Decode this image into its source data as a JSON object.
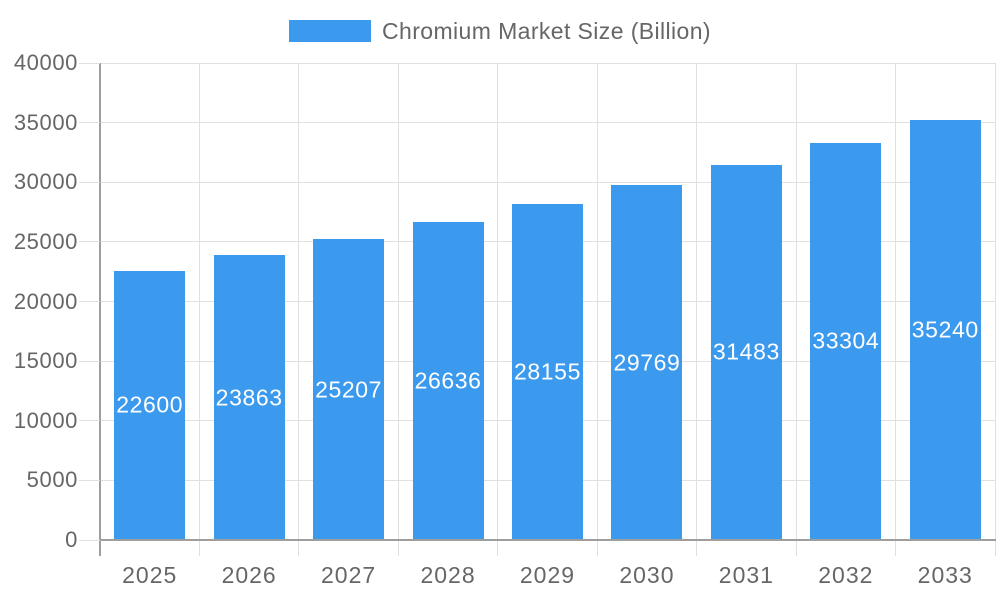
{
  "chart_data": {
    "type": "bar",
    "title": "Chromium Market Size (Billion)",
    "categories": [
      "2025",
      "2026",
      "2027",
      "2028",
      "2029",
      "2030",
      "2031",
      "2032",
      "2033"
    ],
    "series": [
      {
        "name": "Chromium Market Size (Billion)",
        "values": [
          22600,
          23863,
          25207,
          26636,
          28155,
          29769,
          31483,
          33304,
          35240
        ]
      }
    ],
    "xlabel": "",
    "ylabel": "",
    "ylim": [
      0,
      40000
    ],
    "yticks": [
      0,
      5000,
      10000,
      15000,
      20000,
      25000,
      30000,
      35000,
      40000
    ],
    "grid": true,
    "legend_position": "top",
    "value_labels": "inside-center-white",
    "colors": {
      "bar": "#3b9aee",
      "axis_text": "#666666",
      "value_label": "#ffffff",
      "grid": "#e0e0e0",
      "axis_line": "#9e9e9e",
      "background": "#ffffff"
    }
  }
}
